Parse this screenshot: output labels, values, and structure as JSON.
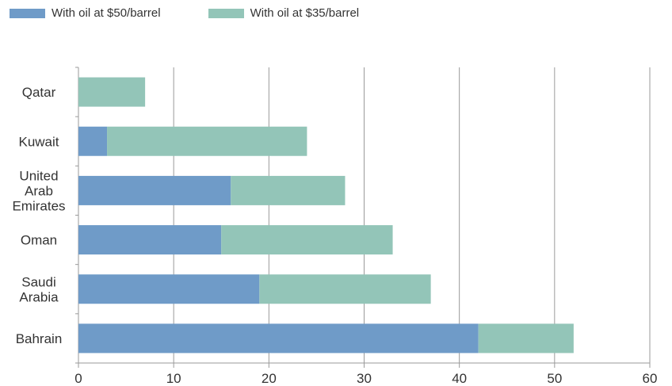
{
  "chart_data": {
    "type": "bar",
    "orientation": "horizontal",
    "stacked": true,
    "title": "",
    "xlabel": "",
    "ylabel": "",
    "xlim": [
      0,
      60
    ],
    "x_ticks": [
      "0",
      "10",
      "20",
      "30",
      "40",
      "50",
      "60"
    ],
    "grid": "vertical",
    "legend_position": "top-left",
    "categories": [
      [
        "Qatar"
      ],
      [
        "Kuwait"
      ],
      [
        "United",
        "Arab",
        "Emirates"
      ],
      [
        "Oman"
      ],
      [
        "Saudi",
        "Arabia"
      ],
      [
        "Bahrain"
      ]
    ],
    "series": [
      {
        "name": "With oil at $50/barrel",
        "color": "#6f9bc8",
        "values": [
          0,
          3,
          16,
          15,
          19,
          42
        ]
      },
      {
        "name": "With oil at $35/barrel",
        "color": "#93c5b8",
        "values": [
          7,
          21,
          12,
          18,
          18,
          10
        ]
      }
    ]
  }
}
